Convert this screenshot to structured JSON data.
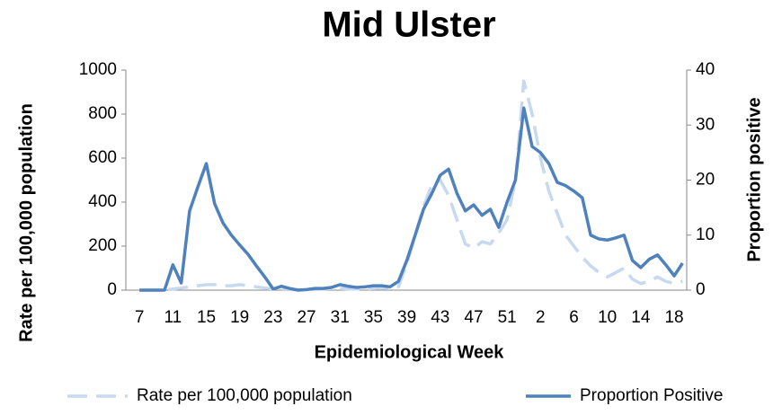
{
  "chart_data": {
    "type": "line",
    "title": "Mid Ulster",
    "x_label": "Epidemiological Week",
    "y_label": "Rate per 100,000 population",
    "y2_label": "Proportion positive",
    "categories": [
      "7",
      null,
      null,
      null,
      "11",
      null,
      null,
      null,
      "15",
      null,
      null,
      null,
      "19",
      null,
      null,
      null,
      "23",
      null,
      null,
      null,
      "27",
      null,
      null,
      null,
      "31",
      null,
      null,
      null,
      "35",
      null,
      null,
      null,
      "39",
      null,
      null,
      null,
      "43",
      null,
      null,
      null,
      "47",
      null,
      null,
      null,
      "51",
      null,
      null,
      null,
      "2",
      null,
      null,
      null,
      "6",
      null,
      null,
      null,
      "10",
      null,
      null,
      null,
      "14",
      null,
      null,
      null,
      "18",
      null
    ],
    "series": [
      {
        "name": "Rate per 100,000 population",
        "color": "#c6d9f1",
        "dashed": true,
        "values": [
          0,
          0,
          0,
          0,
          5,
          10,
          15,
          20,
          25,
          25,
          20,
          20,
          25,
          20,
          15,
          10,
          5,
          2,
          2,
          2,
          2,
          3,
          5,
          8,
          8,
          5,
          5,
          5,
          8,
          10,
          8,
          15,
          120,
          250,
          380,
          480,
          500,
          430,
          320,
          210,
          190,
          220,
          210,
          260,
          320,
          500,
          950,
          800,
          600,
          450,
          350,
          250,
          200,
          150,
          110,
          80,
          60,
          80,
          100,
          50,
          30,
          40,
          60,
          40,
          30,
          40
        ]
      },
      {
        "name": "Proportion Positive",
        "color": "#4f81bd",
        "axis": "y2",
        "values": [
          0,
          0,
          0,
          0,
          4.6,
          1.3,
          14.4,
          18.8,
          23,
          15.7,
          12.2,
          10,
          8.2,
          6.5,
          4.4,
          2.4,
          0.2,
          0.7,
          0.3,
          0,
          0.1,
          0.3,
          0.3,
          0.5,
          1.0,
          0.7,
          0.5,
          0.6,
          0.8,
          0.8,
          0.6,
          1.6,
          5.4,
          10,
          14.7,
          17.6,
          20.9,
          22,
          17.6,
          14.4,
          15.5,
          13.6,
          14.7,
          11.4,
          16,
          20,
          33.1,
          26.1,
          25,
          23,
          19.6,
          19,
          18,
          16.8,
          10,
          9.3,
          9.1,
          9.5,
          10,
          5.4,
          4.1,
          5.6,
          6.4,
          4.6,
          2.6,
          4.9
        ]
      }
    ],
    "ylim": [
      0,
      1000
    ],
    "yticks": [
      0,
      200,
      400,
      600,
      800,
      1000
    ],
    "y2lim": [
      0,
      40
    ],
    "y2ticks": [
      0,
      10,
      20,
      30,
      40
    ],
    "grid": false,
    "legend": "bottom"
  }
}
